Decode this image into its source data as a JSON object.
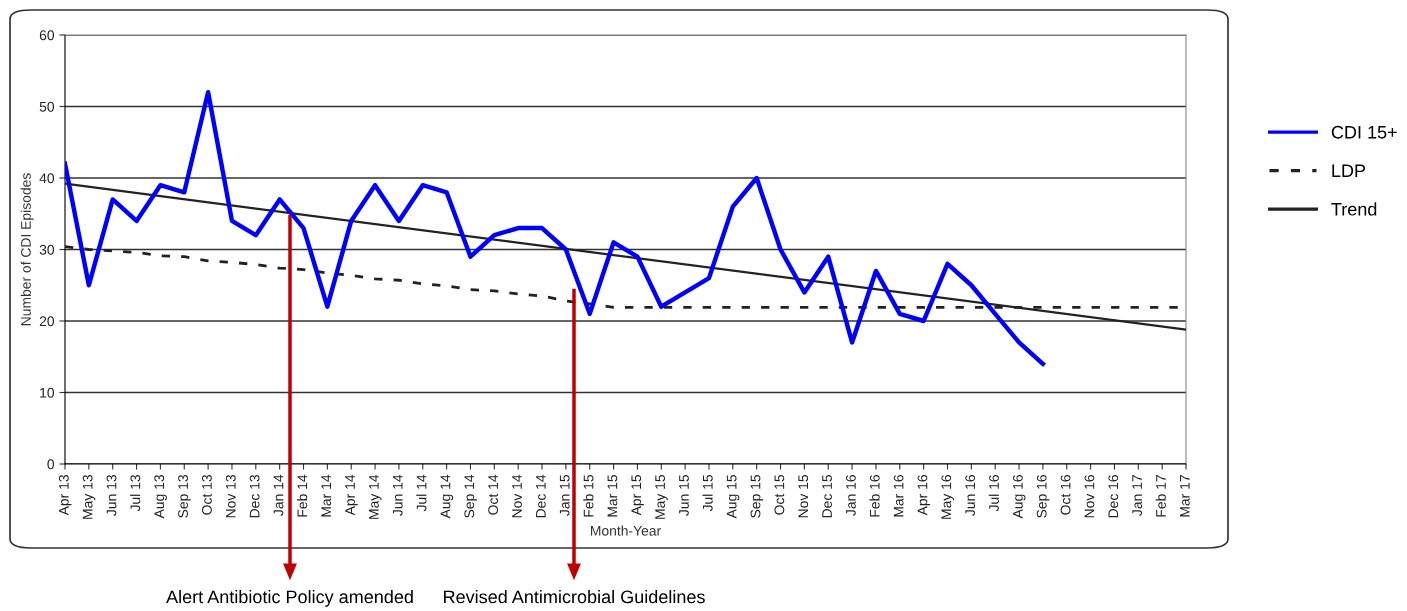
{
  "chart_data": {
    "type": "line",
    "xlabel": "Month-Year",
    "ylabel": "Number of CDI Episodes",
    "categories": [
      "Apr 13",
      "May 13",
      "Jun 13",
      "Jul 13",
      "Aug 13",
      "Sep 13",
      "Oct 13",
      "Nov 13",
      "Dec 13",
      "Jan 14",
      "Feb 14",
      "Mar 14",
      "Apr 14",
      "May 14",
      "Jun 14",
      "Jul 14",
      "Aug 14",
      "Sep 14",
      "Oct 14",
      "Nov 14",
      "Dec 14",
      "Jan 15",
      "Feb 15",
      "Mar 15",
      "Apr 15",
      "May 15",
      "Jun 15",
      "Jul 15",
      "Aug 15",
      "Sep 15",
      "Oct 15",
      "Nov 15",
      "Dec 15",
      "Jan 16",
      "Feb 16",
      "Mar 16",
      "Apr 16",
      "May 16",
      "Jun 16",
      "Jul 16",
      "Aug 16",
      "Sep 16",
      "Oct 16",
      "Nov 16",
      "Dec 16",
      "Jan 17",
      "Feb 17",
      "Mar 17"
    ],
    "series": [
      {
        "name": "CDI 15+",
        "color": "#0000ff",
        "line_style": "solid",
        "values": [
          42,
          25,
          37,
          34,
          39,
          38,
          52,
          34,
          32,
          37,
          33,
          22,
          34,
          39,
          34,
          39,
          38,
          29,
          32,
          33,
          33,
          30,
          21,
          31,
          29,
          22,
          24,
          26,
          36,
          40,
          30,
          24,
          29,
          17,
          27,
          21,
          20,
          28,
          25,
          21,
          17,
          14,
          null,
          null,
          null,
          null,
          null,
          null
        ]
      },
      {
        "name": "LDP",
        "color": "#222222",
        "line_style": "dashed",
        "values": [
          30.4,
          30.0,
          29.8,
          29.6,
          29.1,
          29.0,
          28.4,
          28.2,
          27.9,
          27.4,
          27.2,
          26.7,
          26.4,
          25.9,
          25.7,
          25.2,
          24.9,
          24.4,
          24.2,
          23.8,
          23.5,
          22.8,
          22.4,
          21.9,
          21.9,
          21.9,
          21.9,
          21.9,
          21.9,
          21.9,
          21.9,
          21.9,
          21.9,
          21.9,
          21.9,
          21.9,
          21.9,
          21.9,
          21.9,
          21.9,
          21.9,
          21.9,
          21.9,
          21.9,
          21.9,
          21.9,
          21.9,
          21.9
        ]
      },
      {
        "name": "Trend",
        "color": "#222222",
        "line_style": "solid",
        "x": [
          "Apr 13",
          "Mar 17"
        ],
        "values": [
          39.2,
          18.8
        ]
      }
    ],
    "ylim": [
      0,
      60
    ],
    "yticks": [
      0,
      10,
      20,
      30,
      40,
      50,
      60
    ],
    "grid": "y",
    "legend": "right",
    "marker": "none",
    "annotations": [
      "Alert Antibiotic Policy amended",
      "Revised Antimicrobial Guidelines"
    ]
  }
}
